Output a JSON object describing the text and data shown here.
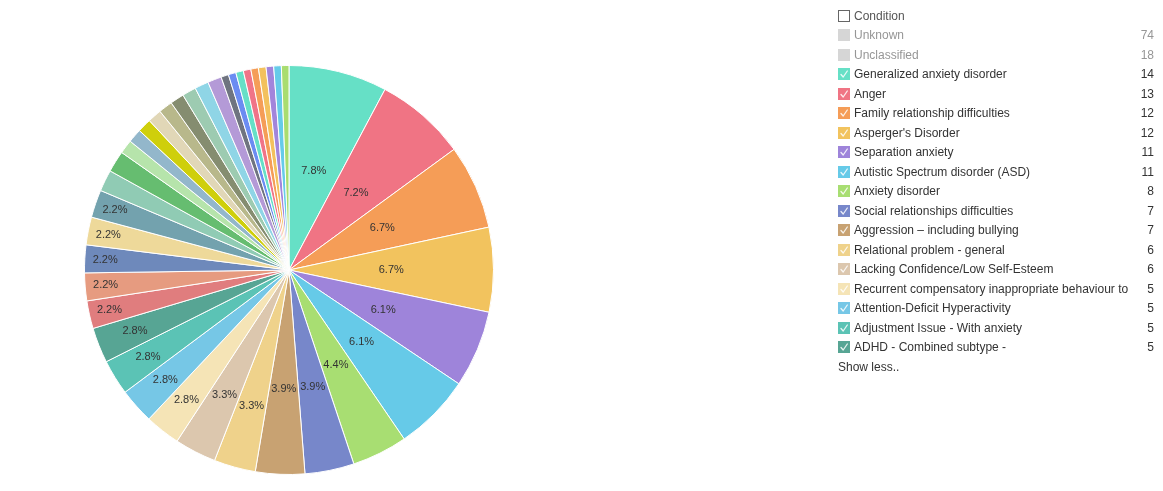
{
  "chart_data": {
    "type": "pie",
    "legend_title": "Condition",
    "categories": [
      "Generalized anxiety disorder",
      "Anger",
      "Family relationship difficulties",
      "Asperger's Disorder",
      "Separation anxiety",
      "Autistic Spectrum disorder (ASD)",
      "Anxiety disorder",
      "Social relationships difficulties",
      "Aggression – including bullying",
      "Relational problem - general",
      "Lacking Confidence/Low Self-Esteem",
      "Recurrent compensatory inappropriate behaviour to",
      "Attention-Deficit Hyperactivity",
      "Adjustment Issue - With anxiety",
      "ADHD - Combined subtype -",
      null,
      null,
      null,
      null,
      null,
      null,
      null,
      null,
      null,
      null,
      null,
      null,
      null,
      null,
      null,
      null,
      null,
      null,
      null,
      null,
      null,
      null,
      null,
      null,
      null
    ],
    "values": [
      7.8,
      7.2,
      6.7,
      6.7,
      6.1,
      6.1,
      4.4,
      3.9,
      3.9,
      3.3,
      3.3,
      2.8,
      2.8,
      2.8,
      2.8,
      2.2,
      2.2,
      2.2,
      2.2,
      2.2,
      1.7,
      1.7,
      1.1,
      1.1,
      1.1,
      1.1,
      1.1,
      1.1,
      1.1,
      1.1,
      1.1,
      0.6,
      0.6,
      0.6,
      0.6,
      0.6,
      0.6,
      0.6,
      0.6,
      0.6
    ],
    "colors": [
      "#66e0c6",
      "#f07484",
      "#f59d57",
      "#f2c35e",
      "#9e84da",
      "#66cae8",
      "#a8de72",
      "#7787ca",
      "#c8a272",
      "#efd28b",
      "#dcc7ae",
      "#f5e4b6",
      "#76c7e6",
      "#5bc3b5",
      "#57a594",
      "#e07d7e",
      "#e69b80",
      "#6e89bb",
      "#eed99a",
      "#73a2ae",
      "#90cbb4",
      "#66bd70",
      "#b6e4ab",
      "#93b7cb",
      "#cfcf0b",
      "#e1d7b7",
      "#b8b88b",
      "#858d70",
      "#9dcbb1",
      "#8fd5e6",
      "#b49ad7",
      "#6f7480",
      "#6b8cf2",
      "#66dfc7",
      "#f07488",
      "#f59d57",
      "#f3c15d",
      "#a285db",
      "#66cbe9",
      "#a9dd70"
    ],
    "value_labels": [
      "7.8%",
      "7.2%",
      "6.7%",
      "6.7%",
      "6.1%",
      "6.1%",
      "4.4%",
      "3.9%",
      "3.9%",
      "3.3%",
      "3.3%",
      "2.8%",
      "2.8%",
      "2.8%",
      "2.8%",
      "2.2%",
      "2.2%",
      "2.2%",
      "2.2%",
      "2.2%",
      null,
      null,
      null,
      null,
      null,
      null,
      null,
      null,
      null,
      null,
      null,
      null,
      null,
      null,
      null,
      null,
      null,
      null,
      null,
      null
    ],
    "legend": "right",
    "annotations": [
      "Unknown",
      "74",
      "Unclassified",
      "18",
      "14",
      "13",
      "12",
      "12",
      "11",
      "11",
      "8",
      "7",
      "7",
      "6",
      "6",
      "5",
      "5",
      "5",
      "5",
      "Show less.."
    ]
  }
}
